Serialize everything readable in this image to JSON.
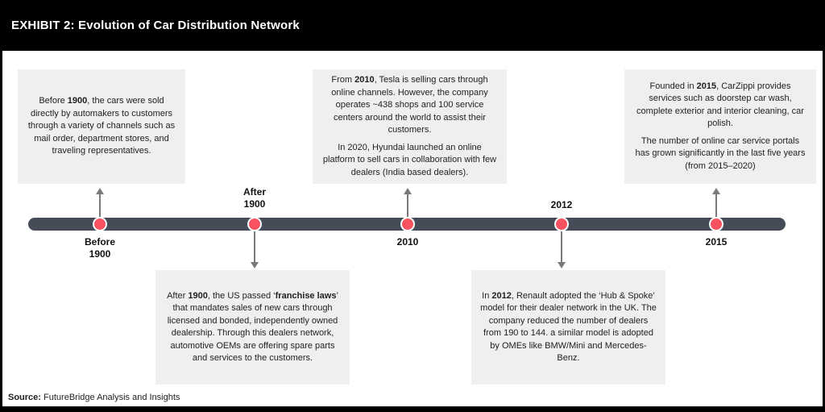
{
  "header": {
    "title": "EXHIBIT 2: Evolution of Car Distribution Network"
  },
  "colors": {
    "header_bg": "#000000",
    "box_bg": "#efefef",
    "timeline_bar": "#454c57",
    "milestone_dot": "#f8515f",
    "connector_arrow": "#7a7a7a"
  },
  "boxes": {
    "before_1900": {
      "paragraphs": [
        [
          {
            "t": "Before ",
            "b": 0
          },
          {
            "t": "1900",
            "b": 1
          },
          {
            "t": ", the cars were sold directly by automakers to customers through a variety of channels such as mail order, department stores, and traveling representatives.",
            "b": 0
          }
        ]
      ]
    },
    "after_1900": {
      "paragraphs": [
        [
          {
            "t": "After ",
            "b": 0
          },
          {
            "t": "1900",
            "b": 1
          },
          {
            "t": ", the US passed ‘",
            "b": 0
          },
          {
            "t": "franchise laws",
            "b": 1
          },
          {
            "t": "’ that mandates sales of new cars through licensed and bonded, independently owned dealership. Through this dealers network, automotive OEMs are offering spare parts and services to the customers.",
            "b": 0
          }
        ]
      ]
    },
    "y2010": {
      "paragraphs": [
        [
          {
            "t": "From ",
            "b": 0
          },
          {
            "t": "2010",
            "b": 1
          },
          {
            "t": ", Tesla is selling cars through online channels. However, the company operates ~438 shops and 100 service centers around the world to assist their customers.",
            "b": 0
          }
        ],
        [
          {
            "t": "In 2020, Hyundai launched an online platform to sell cars in collaboration with few dealers (India based dealers).",
            "b": 0
          }
        ]
      ]
    },
    "y2012": {
      "paragraphs": [
        [
          {
            "t": "In ",
            "b": 0
          },
          {
            "t": "2012",
            "b": 1
          },
          {
            "t": ", Renault adopted the ‘Hub & Spoke’ model for their dealer network in the UK. The company reduced the number of dealers from 190 to 144. a similar model is adopted by OMEs like BMW/Mini and Mercedes-Benz.",
            "b": 0
          }
        ]
      ]
    },
    "y2015": {
      "paragraphs": [
        [
          {
            "t": "Founded in ",
            "b": 0
          },
          {
            "t": "2015",
            "b": 1
          },
          {
            "t": ", CarZippi provides services such as doorstep car wash, complete exterior and interior cleaning, car polish.",
            "b": 0
          }
        ],
        [
          {
            "t": "The number of online car service portals has grown significantly in the last five years (from 2015–2020)",
            "b": 0
          }
        ]
      ]
    }
  },
  "timeline": {
    "milestones": [
      {
        "id": "before-1900",
        "label_lines": [
          "Before",
          "1900"
        ],
        "label_position": "below",
        "connector": "up"
      },
      {
        "id": "after-1900",
        "label_lines": [
          "After",
          "1900"
        ],
        "label_position": "above",
        "connector": "down"
      },
      {
        "id": "2010",
        "label_lines": [
          "2010"
        ],
        "label_position": "below",
        "connector": "up"
      },
      {
        "id": "2012",
        "label_lines": [
          "2012"
        ],
        "label_position": "above",
        "connector": "down"
      },
      {
        "id": "2015",
        "label_lines": [
          "2015"
        ],
        "label_position": "below",
        "connector": "up"
      }
    ]
  },
  "source": {
    "prefix": "Source:",
    "text": " FutureBridge Analysis and Insights"
  }
}
